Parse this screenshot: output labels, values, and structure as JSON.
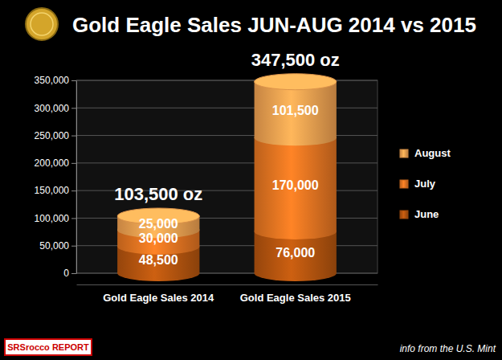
{
  "chart_data": {
    "type": "bar",
    "title": "Gold Eagle Sales JUN-AUG 2014 vs 2015",
    "categories": [
      "Gold Eagle Sales 2014",
      "Gold Eagle Sales 2015"
    ],
    "series": [
      {
        "name": "June",
        "color": "#b8560f",
        "values": [
          48500,
          76000
        ],
        "value_labels": [
          "48,500",
          "76,000"
        ]
      },
      {
        "name": "July",
        "color": "#e87722",
        "values": [
          30000,
          170000
        ],
        "value_labels": [
          "30,000",
          "170,000"
        ]
      },
      {
        "name": "August",
        "color": "#f5a452",
        "values": [
          25000,
          101500
        ],
        "value_labels": [
          "25,000",
          "101,500"
        ]
      }
    ],
    "stacked": true,
    "data_labels": true,
    "grid": true,
    "legend": "right",
    "ylim": [
      0,
      350000
    ],
    "yticks": [
      0,
      {
        "value": 50000,
        "label": "50,000"
      },
      {
        "value": 100000,
        "label": "100,000"
      },
      {
        "value": 150000,
        "label": "150,000"
      },
      {
        "value": 200000,
        "label": "200,000"
      },
      {
        "value": 250000,
        "label": "250,000"
      },
      {
        "value": 300000,
        "label": "300,000"
      },
      {
        "value": 350000,
        "label": "350,000"
      }
    ],
    "annotations": [
      "103,500 oz",
      "347,500 oz"
    ],
    "source": "info from the U.S. Mint",
    "logo": "SRSrocco REPORT"
  }
}
